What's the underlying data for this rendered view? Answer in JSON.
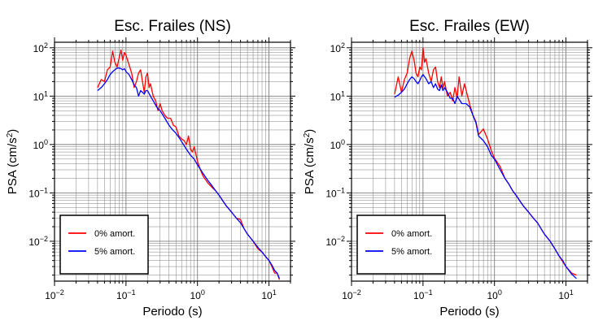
{
  "chart_data": [
    {
      "type": "line",
      "title": "Esc. Frailes (NS)",
      "xlabel": "Periodo (s)",
      "ylabel_main": "PSA (cm/s",
      "ylabel_sup": "2",
      "ylabel_end": ")",
      "xscale": "log",
      "yscale": "log",
      "xlim": [
        0.01,
        20
      ],
      "ylim": [
        0.0015,
        130
      ],
      "grid": true,
      "legend_position": "bottom-left",
      "x_ticks": [
        {
          "value": 0.01,
          "base": "10",
          "exp": "−2"
        },
        {
          "value": 0.1,
          "base": "10",
          "exp": "−1"
        },
        {
          "value": 1,
          "base": "10",
          "exp": "0"
        },
        {
          "value": 10,
          "base": "10",
          "exp": "1"
        }
      ],
      "y_ticks": [
        {
          "value": 0.01,
          "base": "10",
          "exp": "−2"
        },
        {
          "value": 0.1,
          "base": "10",
          "exp": "−1"
        },
        {
          "value": 1,
          "base": "10",
          "exp": "0"
        },
        {
          "value": 10,
          "base": "10",
          "exp": "1"
        },
        {
          "value": 100,
          "base": "10",
          "exp": "2"
        }
      ],
      "series": [
        {
          "name": "0% amort.",
          "color": "#ff0000",
          "x": [
            0.04,
            0.045,
            0.05,
            0.055,
            0.06,
            0.065,
            0.07,
            0.075,
            0.08,
            0.085,
            0.09,
            0.095,
            0.1,
            0.11,
            0.12,
            0.13,
            0.14,
            0.15,
            0.16,
            0.17,
            0.18,
            0.19,
            0.2,
            0.21,
            0.22,
            0.24,
            0.26,
            0.28,
            0.3,
            0.32,
            0.35,
            0.38,
            0.42,
            0.46,
            0.5,
            0.55,
            0.6,
            0.65,
            0.7,
            0.75,
            0.8,
            0.85,
            0.9,
            1.0,
            1.1,
            1.2,
            1.4,
            1.6,
            1.8,
            2.0,
            2.5,
            3.0,
            3.5,
            4.0,
            4.5,
            5.0,
            6.0,
            7.0,
            8.0,
            9.0,
            10.0,
            11.0,
            12.0,
            13.0,
            14.0
          ],
          "y": [
            15,
            22,
            20,
            35,
            40,
            85,
            50,
            40,
            60,
            90,
            55,
            80,
            70,
            45,
            30,
            15,
            20,
            30,
            35,
            20,
            12,
            25,
            30,
            15,
            18,
            10,
            8,
            5,
            7,
            5,
            4,
            3.5,
            3.5,
            2.5,
            2.3,
            1.5,
            1.3,
            1.2,
            1.0,
            1.5,
            0.8,
            0.7,
            0.9,
            0.45,
            0.3,
            0.22,
            0.16,
            0.13,
            0.11,
            0.09,
            0.055,
            0.04,
            0.03,
            0.028,
            0.018,
            0.014,
            0.01,
            0.007,
            0.006,
            0.0048,
            0.004,
            0.003,
            0.0022,
            0.0022,
            0.0016
          ]
        },
        {
          "name": "5% amort.",
          "color": "#0000ff",
          "x": [
            0.04,
            0.045,
            0.05,
            0.055,
            0.06,
            0.065,
            0.07,
            0.075,
            0.08,
            0.085,
            0.09,
            0.095,
            0.1,
            0.11,
            0.12,
            0.13,
            0.14,
            0.15,
            0.16,
            0.17,
            0.18,
            0.19,
            0.2,
            0.22,
            0.24,
            0.26,
            0.28,
            0.3,
            0.35,
            0.4,
            0.45,
            0.5,
            0.55,
            0.6,
            0.7,
            0.8,
            0.9,
            1.0,
            1.2,
            1.4,
            1.6,
            1.8,
            2.0,
            2.5,
            3.0,
            3.5,
            4.0,
            4.5,
            5.0,
            6.0,
            7.0,
            8.0,
            9.0,
            10.0,
            11.0,
            12.0,
            13.0,
            14.0
          ],
          "y": [
            13,
            15,
            18,
            22,
            28,
            32,
            35,
            38,
            38,
            37,
            35,
            37,
            32,
            28,
            22,
            17,
            15,
            10,
            13,
            12,
            11,
            13,
            13,
            10,
            8,
            6.5,
            5.5,
            5,
            3.5,
            2.5,
            2.0,
            1.7,
            1.4,
            1.15,
            0.8,
            0.6,
            0.5,
            0.38,
            0.25,
            0.18,
            0.14,
            0.11,
            0.09,
            0.055,
            0.04,
            0.03,
            0.024,
            0.018,
            0.014,
            0.01,
            0.0075,
            0.006,
            0.0048,
            0.004,
            0.0032,
            0.0025,
            0.0022,
            0.0017
          ]
        }
      ]
    },
    {
      "type": "line",
      "title": "Esc. Frailes (EW)",
      "xlabel": "Periodo (s)",
      "ylabel_main": "PSA (cm/s",
      "ylabel_sup": "2",
      "ylabel_end": ")",
      "xscale": "log",
      "yscale": "log",
      "xlim": [
        0.01,
        20
      ],
      "ylim": [
        0.0015,
        130
      ],
      "grid": true,
      "legend_position": "bottom-left",
      "x_ticks": [
        {
          "value": 0.01,
          "base": "10",
          "exp": "−2"
        },
        {
          "value": 0.1,
          "base": "10",
          "exp": "−1"
        },
        {
          "value": 1,
          "base": "10",
          "exp": "0"
        },
        {
          "value": 10,
          "base": "10",
          "exp": "1"
        }
      ],
      "y_ticks": [
        {
          "value": 0.01,
          "base": "10",
          "exp": "−2"
        },
        {
          "value": 0.1,
          "base": "10",
          "exp": "−1"
        },
        {
          "value": 1,
          "base": "10",
          "exp": "0"
        },
        {
          "value": 10,
          "base": "10",
          "exp": "1"
        },
        {
          "value": 100,
          "base": "10",
          "exp": "2"
        }
      ],
      "series": [
        {
          "name": "0% amort.",
          "color": "#ff0000",
          "x": [
            0.04,
            0.045,
            0.05,
            0.055,
            0.06,
            0.065,
            0.07,
            0.075,
            0.08,
            0.085,
            0.09,
            0.095,
            0.1,
            0.105,
            0.11,
            0.12,
            0.13,
            0.14,
            0.15,
            0.16,
            0.17,
            0.18,
            0.19,
            0.2,
            0.22,
            0.24,
            0.26,
            0.28,
            0.3,
            0.32,
            0.35,
            0.38,
            0.42,
            0.46,
            0.5,
            0.55,
            0.6,
            0.7,
            0.8,
            0.9,
            1.0,
            1.2,
            1.4,
            1.6,
            1.8,
            2.0,
            2.5,
            3.0,
            3.5,
            4.0,
            4.5,
            5.0,
            6.0,
            7.0,
            8.0,
            9.0,
            10.0,
            12.0,
            14.0
          ],
          "y": [
            11,
            25,
            12,
            22,
            30,
            60,
            85,
            55,
            30,
            25,
            40,
            35,
            100,
            50,
            60,
            30,
            20,
            35,
            40,
            20,
            15,
            25,
            15,
            20,
            10,
            12,
            8,
            15,
            9,
            25,
            10,
            18,
            10,
            6,
            4,
            3,
            1.6,
            2.1,
            1.3,
            0.75,
            0.52,
            0.35,
            0.2,
            0.15,
            0.11,
            0.09,
            0.055,
            0.04,
            0.03,
            0.024,
            0.018,
            0.014,
            0.01,
            0.007,
            0.005,
            0.0038,
            0.003,
            0.0022,
            0.002
          ]
        },
        {
          "name": "5% amort.",
          "color": "#0000ff",
          "x": [
            0.04,
            0.045,
            0.05,
            0.055,
            0.06,
            0.065,
            0.07,
            0.075,
            0.08,
            0.085,
            0.09,
            0.095,
            0.1,
            0.11,
            0.12,
            0.13,
            0.14,
            0.15,
            0.16,
            0.17,
            0.18,
            0.19,
            0.2,
            0.22,
            0.24,
            0.26,
            0.28,
            0.3,
            0.35,
            0.4,
            0.45,
            0.5,
            0.55,
            0.6,
            0.7,
            0.8,
            0.9,
            1.0,
            1.2,
            1.4,
            1.6,
            1.8,
            2.0,
            2.5,
            3.0,
            3.5,
            4.0,
            4.5,
            5.0,
            6.0,
            7.0,
            8.0,
            9.0,
            10.0,
            12.0,
            14.0
          ],
          "y": [
            9.5,
            10.5,
            12,
            14,
            18,
            22,
            25,
            23,
            20,
            18,
            21,
            25,
            28,
            23,
            18,
            20,
            15,
            18,
            14,
            13,
            17,
            13,
            15,
            12,
            9,
            9,
            7,
            10,
            7,
            7,
            6,
            4,
            2.8,
            1.5,
            1.2,
            0.9,
            0.6,
            0.5,
            0.3,
            0.2,
            0.15,
            0.11,
            0.09,
            0.055,
            0.04,
            0.03,
            0.024,
            0.018,
            0.014,
            0.01,
            0.007,
            0.005,
            0.004,
            0.003,
            0.0021,
            0.0017
          ]
        }
      ]
    }
  ]
}
